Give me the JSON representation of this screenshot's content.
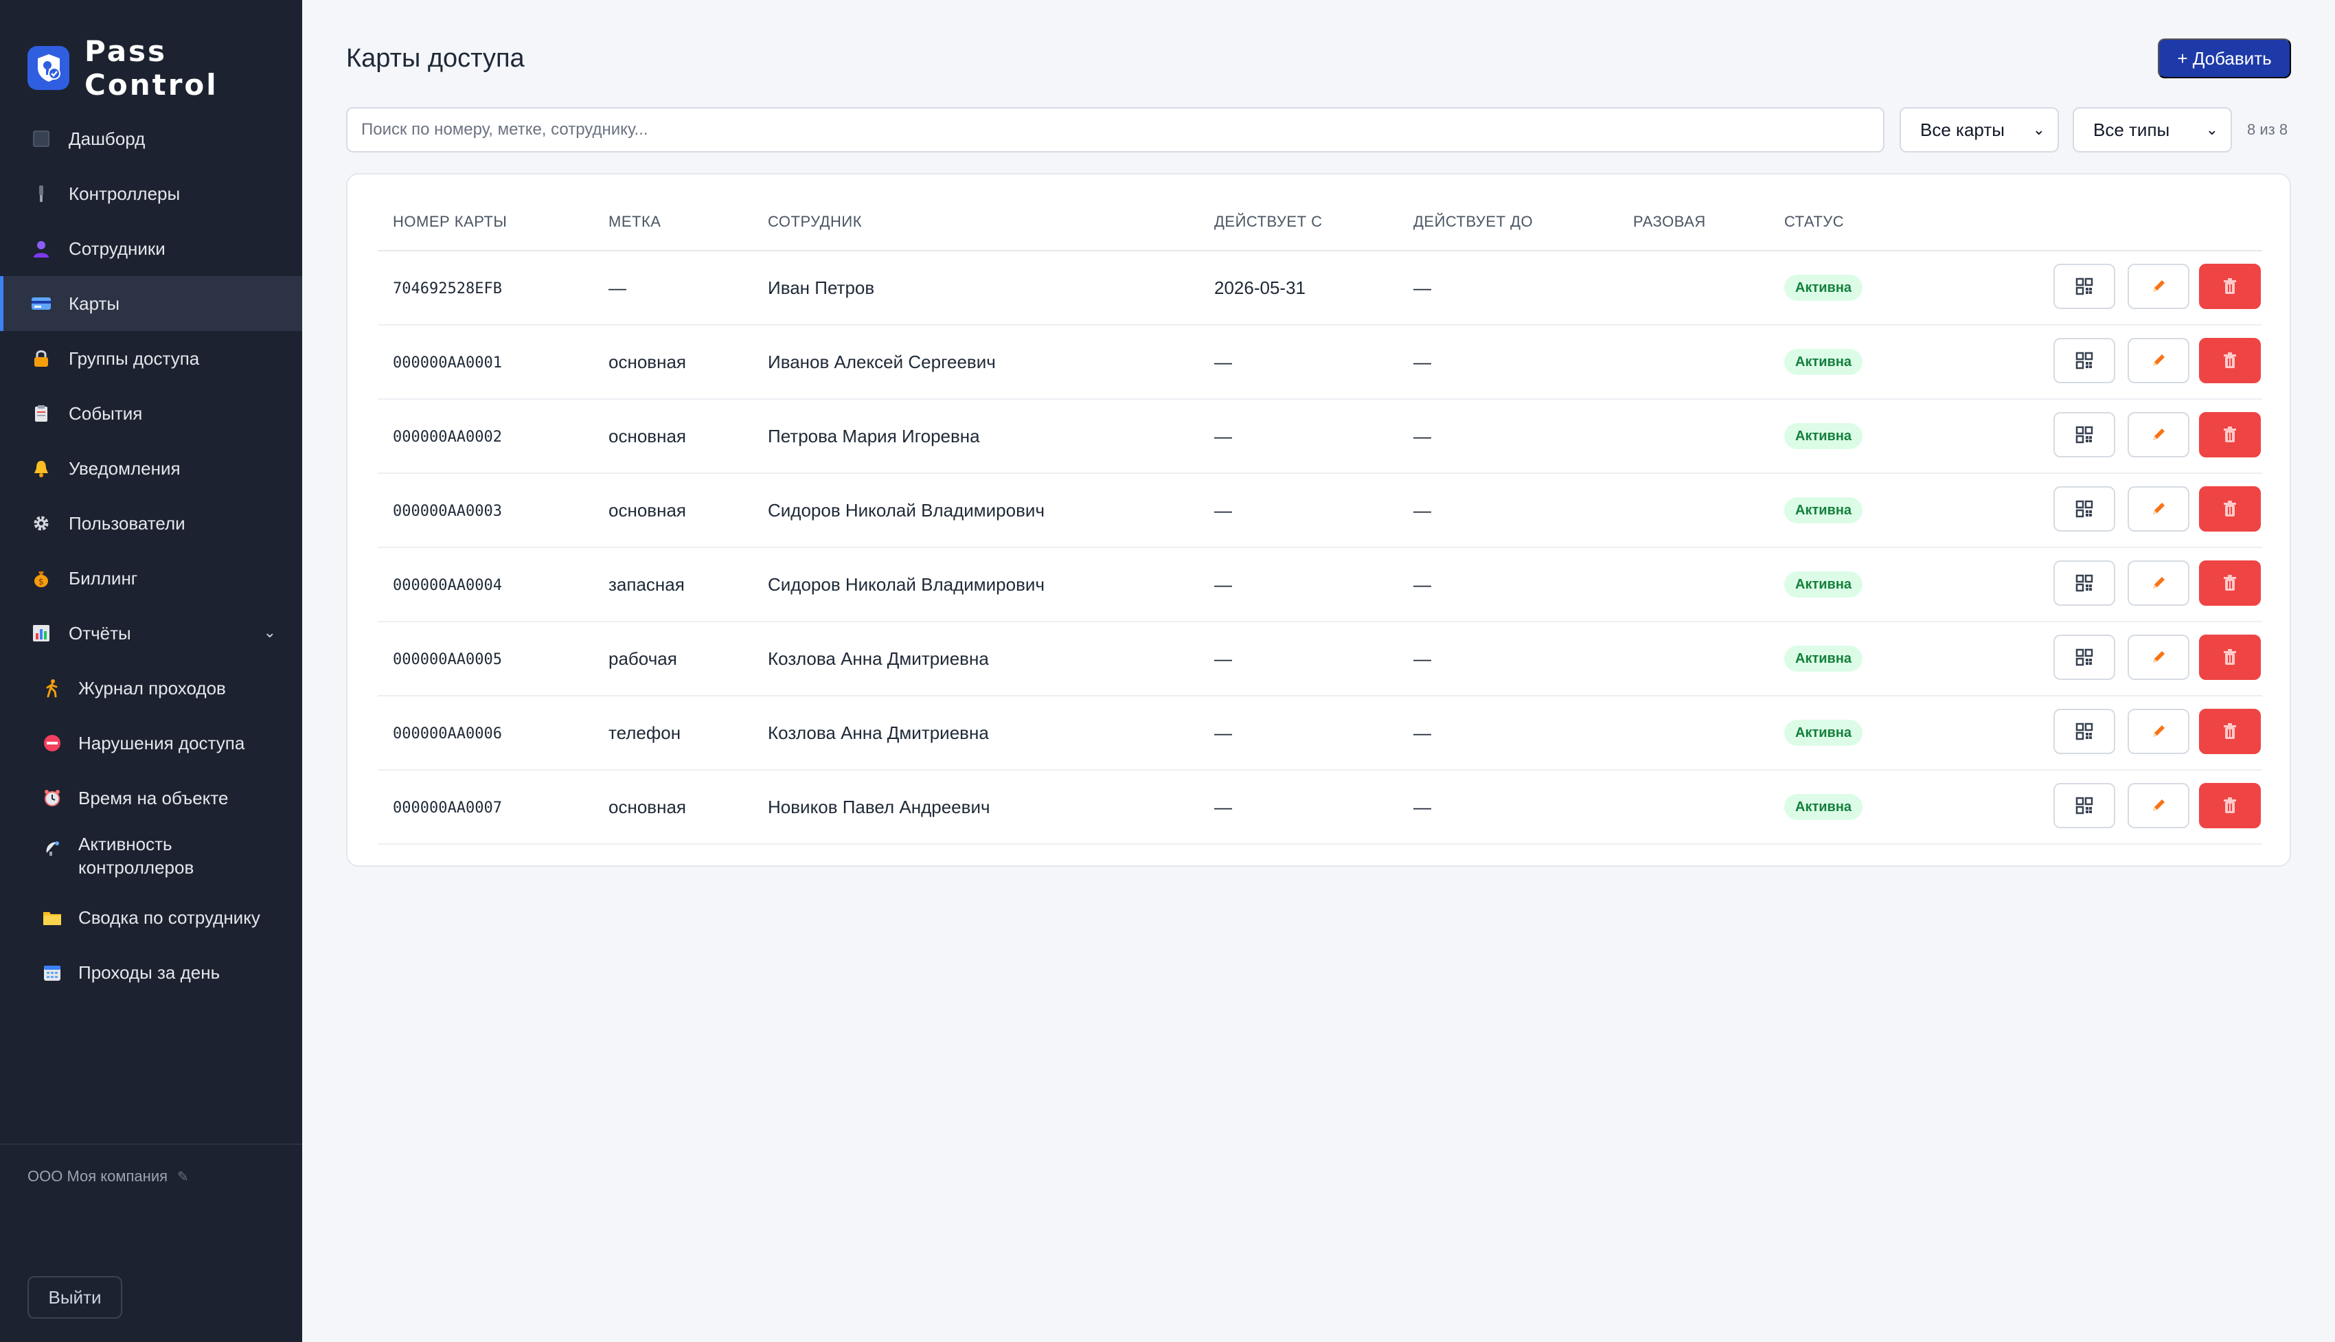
{
  "app": {
    "name": "Pass Control"
  },
  "sidebar": {
    "items": [
      {
        "label": "Дашборд",
        "icon": "dashboard-icon"
      },
      {
        "label": "Контроллеры",
        "icon": "controller-icon"
      },
      {
        "label": "Сотрудники",
        "icon": "user-icon"
      },
      {
        "label": "Карты",
        "icon": "card-icon",
        "active": true
      },
      {
        "label": "Группы доступа",
        "icon": "lock-icon"
      },
      {
        "label": "События",
        "icon": "clipboard-icon"
      },
      {
        "label": "Уведомления",
        "icon": "bell-icon"
      },
      {
        "label": "Пользователи",
        "icon": "gear-icon"
      },
      {
        "label": "Биллинг",
        "icon": "money-bag-icon"
      },
      {
        "label": "Отчёты",
        "icon": "chart-icon",
        "expanded": true
      }
    ],
    "reports": [
      {
        "label": "Журнал проходов",
        "icon": "walking-person-icon"
      },
      {
        "label": "Нарушения доступа",
        "icon": "no-entry-icon"
      },
      {
        "label": "Время на объекте",
        "icon": "alarm-clock-icon"
      },
      {
        "label": "Активность контроллеров",
        "icon": "satellite-icon"
      },
      {
        "label": "Сводка по сотруднику",
        "icon": "folder-icon"
      },
      {
        "label": "Проходы за день",
        "icon": "calendar-icon"
      }
    ],
    "company": "ООО Моя компания",
    "logout": "Выйти"
  },
  "main": {
    "title": "Карты доступа",
    "add_label": "+ Добавить",
    "search_placeholder": "Поиск по номеру, метке, сотруднику...",
    "filter_status": "Все карты",
    "filter_type": "Все типы",
    "count": "8 из 8"
  },
  "table": {
    "columns": [
      "НОМЕР КАРТЫ",
      "МЕТКА",
      "СОТРУДНИК",
      "ДЕЙСТВУЕТ С",
      "ДЕЙСТВУЕТ ДО",
      "РАЗОВАЯ",
      "СТАТУС"
    ],
    "rows": [
      {
        "number": "704692528EFB",
        "label": "—",
        "employee": "Иван Петров",
        "from": "2026-05-31",
        "to": "—",
        "onetime": "",
        "status": "Активна"
      },
      {
        "number": "000000AA0001",
        "label": "основная",
        "employee": "Иванов Алексей Сергеевич",
        "from": "—",
        "to": "—",
        "onetime": "",
        "status": "Активна"
      },
      {
        "number": "000000AA0002",
        "label": "основная",
        "employee": "Петрова Мария Игоревна",
        "from": "—",
        "to": "—",
        "onetime": "",
        "status": "Активна"
      },
      {
        "number": "000000AA0003",
        "label": "основная",
        "employee": "Сидоров Николай Владимирович",
        "from": "—",
        "to": "—",
        "onetime": "",
        "status": "Активна"
      },
      {
        "number": "000000AA0004",
        "label": "запасная",
        "employee": "Сидоров Николай Владимирович",
        "from": "—",
        "to": "—",
        "onetime": "",
        "status": "Активна"
      },
      {
        "number": "000000AA0005",
        "label": "рабочая",
        "employee": "Козлова Анна Дмитриевна",
        "from": "—",
        "to": "—",
        "onetime": "",
        "status": "Активна"
      },
      {
        "number": "000000AA0006",
        "label": "телефон",
        "employee": "Козлова Анна Дмитриевна",
        "from": "—",
        "to": "—",
        "onetime": "",
        "status": "Активна"
      },
      {
        "number": "000000AA0007",
        "label": "основная",
        "employee": "Новиков Павел Андреевич",
        "from": "—",
        "to": "—",
        "onetime": "",
        "status": "Активна"
      }
    ]
  },
  "colors": {
    "sidebar_bg": "#1c2230",
    "accent": "#1e3aa8",
    "status_active_bg": "#dcfce7",
    "status_active_text": "#15803d",
    "danger": "#ef4444"
  }
}
